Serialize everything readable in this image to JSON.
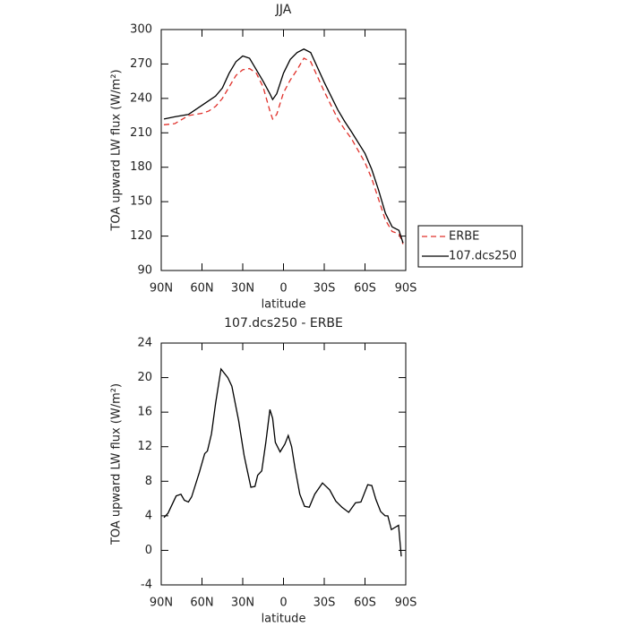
{
  "chart_data": [
    {
      "type": "line",
      "title": "JJA",
      "x_label": "latitude",
      "y_label": "TOA upward LW flux (W/m²)",
      "x": [
        88,
        80,
        70,
        60,
        55,
        50,
        45,
        40,
        35,
        30,
        25,
        20,
        15,
        10,
        8,
        5,
        0,
        -5,
        -10,
        -15,
        -20,
        -30,
        -40,
        -45,
        -50,
        -60,
        -65,
        -70,
        -75,
        -80,
        -85,
        -88
      ],
      "series": [
        {
          "name": "ERBE",
          "color": "#e0302a",
          "style": "dashed",
          "values": [
            217,
            218,
            225,
            227,
            229,
            233,
            240,
            250,
            260,
            265,
            266,
            262,
            250,
            229,
            222,
            226,
            245,
            256,
            265,
            275,
            272,
            246,
            222,
            213,
            205,
            184,
            170,
            152,
            134,
            124,
            122,
            113
          ]
        },
        {
          "name": "107.dcs250",
          "color": "#000000",
          "style": "solid",
          "values": [
            222,
            224,
            226,
            234,
            238,
            242,
            249,
            262,
            272,
            277,
            275,
            265,
            255,
            244,
            239,
            244,
            262,
            274,
            280,
            283,
            280,
            254,
            230,
            220,
            211,
            192,
            178,
            160,
            140,
            128,
            125,
            114
          ]
        }
      ],
      "xlim": [
        90,
        -90
      ],
      "xticks": [
        {
          "value": 90,
          "label": "90N"
        },
        {
          "value": 60,
          "label": "60N"
        },
        {
          "value": 30,
          "label": "30N"
        },
        0,
        {
          "value": -30,
          "label": "30S"
        },
        {
          "value": -60,
          "label": "60S"
        },
        {
          "value": -90,
          "label": "90S"
        }
      ],
      "ylim": [
        90,
        300
      ],
      "yticks": [
        90,
        120,
        150,
        180,
        210,
        240,
        270,
        300
      ],
      "legend": "right"
    },
    {
      "type": "line",
      "title": "107.dcs250 - ERBE",
      "x_label": "latitude",
      "y_label": "TOA upward LW flux (W/m²)",
      "x": [
        88,
        85,
        79,
        75.5,
        73,
        70,
        67.6,
        62,
        58,
        56,
        53,
        50,
        46,
        41,
        38,
        33,
        29,
        27,
        24,
        21,
        19,
        16,
        13,
        10,
        8,
        6,
        2.5,
        -1,
        -3.5,
        -6,
        -8.5,
        -12,
        -15.5,
        -19,
        -23,
        -28.7,
        -34,
        -38.5,
        -43,
        -48,
        -53,
        -57,
        -62,
        -65,
        -68,
        -71.5,
        -74.8,
        -76.8,
        -79.4,
        -84.7,
        -86.7
      ],
      "series": [
        {
          "color": "#000000",
          "style": "solid",
          "values": [
            3.8,
            4.3,
            6.3,
            6.5,
            5.8,
            5.6,
            6.2,
            9,
            11.2,
            11.5,
            13.5,
            17,
            21,
            20,
            19,
            15,
            11,
            9.5,
            7.3,
            7.4,
            8.7,
            9.2,
            12.5,
            16.3,
            15.3,
            12.5,
            11.4,
            12.3,
            13.3,
            12,
            9.5,
            6.5,
            5.1,
            5.0,
            6.5,
            7.8,
            7,
            5.7,
            5,
            4.4,
            5.5,
            5.6,
            7.6,
            7.5,
            5.9,
            4.5,
            4.0,
            4.0,
            2.4,
            2.9,
            -0.7
          ]
        }
      ],
      "xlim": [
        90,
        -90
      ],
      "xticks": [
        {
          "value": 90,
          "label": "90N"
        },
        {
          "value": 60,
          "label": "60N"
        },
        {
          "value": 30,
          "label": "30N"
        },
        0,
        {
          "value": -30,
          "label": "30S"
        },
        {
          "value": -60,
          "label": "60S"
        },
        {
          "value": -90,
          "label": "90S"
        }
      ],
      "ylim": [
        -4,
        24
      ],
      "yticks": [
        -4,
        0,
        4,
        8,
        12,
        16,
        20,
        24
      ]
    }
  ]
}
